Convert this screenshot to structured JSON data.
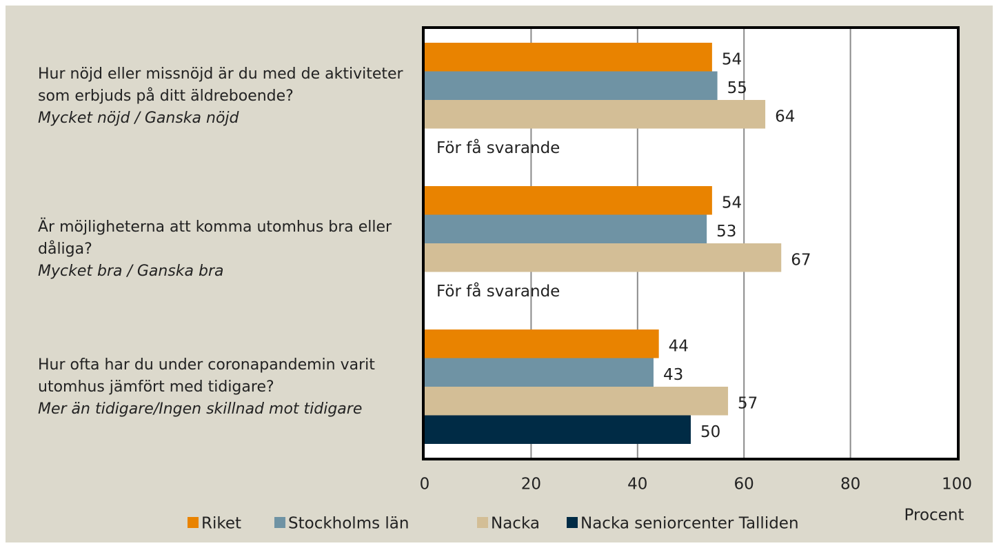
{
  "chart_data": {
    "type": "barh",
    "categories": [
      "Hur nöjd eller missnöjd är du med de aktiviteter som erbjuds på ditt äldreboende?",
      "Är möjligheterna att komma utomhus bra eller dåliga?",
      "Hur ofta har du under coronapandemin varit utomhus jämfört med tidigare?"
    ],
    "category_subtitles": [
      "Mycket nöjd / Ganska nöjd",
      "Mycket bra / Ganska bra",
      "Mer än tidigare/Ingen skillnad mot tidigare"
    ],
    "series": [
      {
        "name": "Riket",
        "color": "#e98300",
        "values": [
          54,
          54,
          44
        ]
      },
      {
        "name": "Stockholms län",
        "color": "#6f93a4",
        "values": [
          55,
          53,
          43
        ]
      },
      {
        "name": "Nacka",
        "color": "#d3be96",
        "values": [
          64,
          67,
          57
        ]
      },
      {
        "name": "Nacka seniorcenter Talliden",
        "color": "#002b45",
        "values": [
          null,
          null,
          50
        ],
        "value_labels": [
          "För få svarande",
          "För få svarande",
          "50"
        ]
      }
    ],
    "xlabel": "Procent",
    "xlim": [
      0,
      100
    ],
    "xticks": [
      0,
      20,
      40,
      60,
      80,
      100
    ],
    "grid": true,
    "legend": "bottom"
  }
}
